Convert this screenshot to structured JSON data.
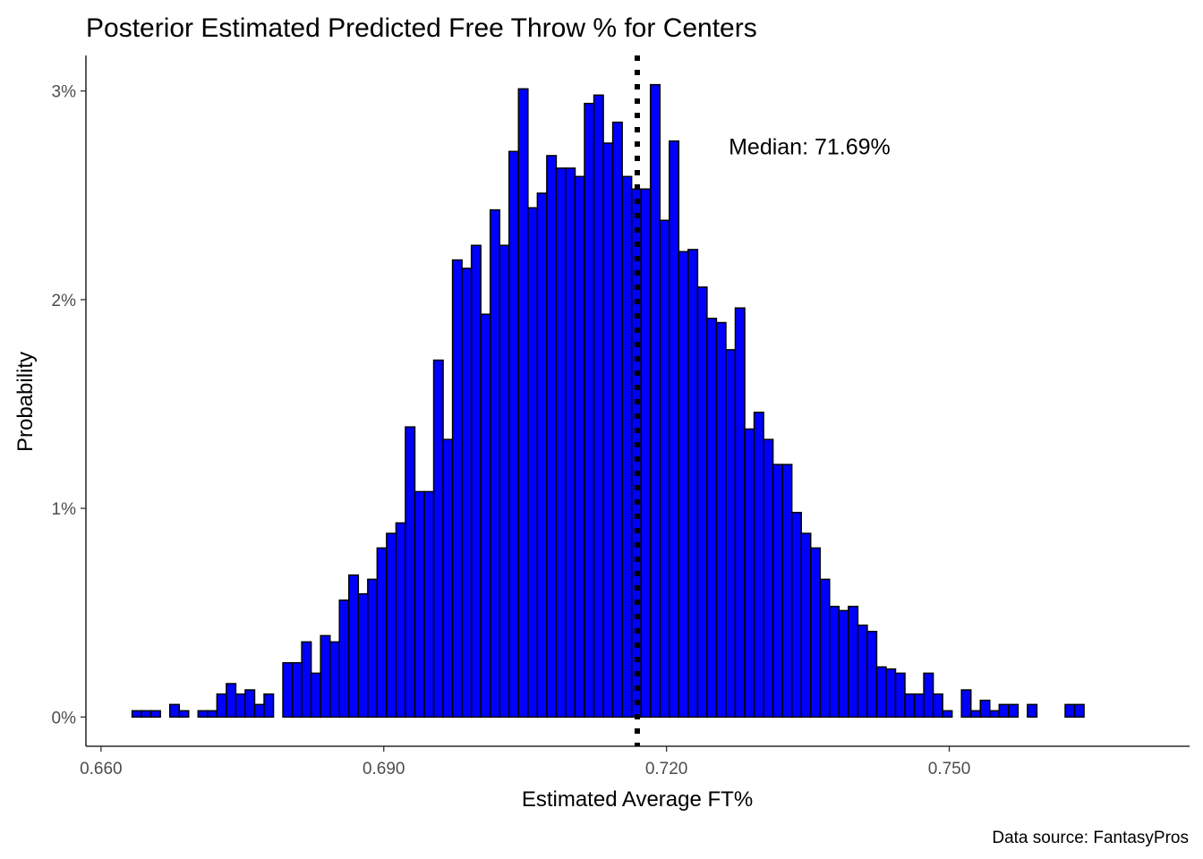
{
  "chart_data": {
    "type": "bar",
    "subtype": "histogram",
    "title": "Posterior Estimated Predicted Free Throw % for Centers",
    "xlabel": "Estimated Average FT%",
    "ylabel": "Probability",
    "caption": "Data source: FantasyPros",
    "xlim": [
      0.6584,
      0.7755
    ],
    "ylim": [
      -0.0014,
      0.0317
    ],
    "x_ticks": [
      0.66,
      0.69,
      0.72,
      0.75
    ],
    "x_tick_labels": [
      "0.660",
      "0.690",
      "0.720",
      "0.750"
    ],
    "y_ticks": [
      0,
      0.01,
      0.02,
      0.03
    ],
    "y_tick_labels": [
      "0%",
      "1%",
      "2%",
      "3%"
    ],
    "bin_width": 0.001,
    "bins_start": 0.6633,
    "values": [
      0.0003,
      0.0003,
      0.0003,
      0,
      0.0006,
      0.0003,
      0,
      0.0003,
      0.0003,
      0.0011,
      0.0016,
      0.0011,
      0.0013,
      0.0006,
      0.0011,
      0,
      0.0026,
      0.0026,
      0.0036,
      0.0021,
      0.0039,
      0.0036,
      0.0056,
      0.0068,
      0.0059,
      0.0066,
      0.0081,
      0.0088,
      0.0093,
      0.0139,
      0.0108,
      0.0108,
      0.0171,
      0.0133,
      0.0219,
      0.0215,
      0.0226,
      0.0193,
      0.0243,
      0.0226,
      0.0271,
      0.0301,
      0.0244,
      0.0251,
      0.0269,
      0.0263,
      0.0263,
      0.0259,
      0.0294,
      0.0298,
      0.0275,
      0.0285,
      0.0259,
      0.0253,
      0.0253,
      0.0303,
      0.0238,
      0.0276,
      0.0223,
      0.0224,
      0.0206,
      0.0191,
      0.0189,
      0.0176,
      0.0196,
      0.0138,
      0.0146,
      0.0133,
      0.0121,
      0.0121,
      0.0098,
      0.0088,
      0.0081,
      0.0066,
      0.0053,
      0.0051,
      0.0053,
      0.0044,
      0.0041,
      0.0024,
      0.0023,
      0.0021,
      0.0011,
      0.0011,
      0.0021,
      0.0011,
      0.0003,
      0,
      0.0013,
      0.0003,
      0.0008,
      0.0003,
      0.0006,
      0.0006,
      0,
      0.0006,
      0,
      0,
      0,
      0.0006,
      0.0006
    ],
    "bar_fill": "#0000ff",
    "bar_stroke": "#000000",
    "median_line": {
      "x": 0.7169,
      "style": "dotted",
      "color": "#000000"
    },
    "annotation": {
      "text": "Median: 71.69%",
      "x": 0.7266,
      "y": 0.0273
    },
    "grid": false,
    "legend": "none"
  }
}
